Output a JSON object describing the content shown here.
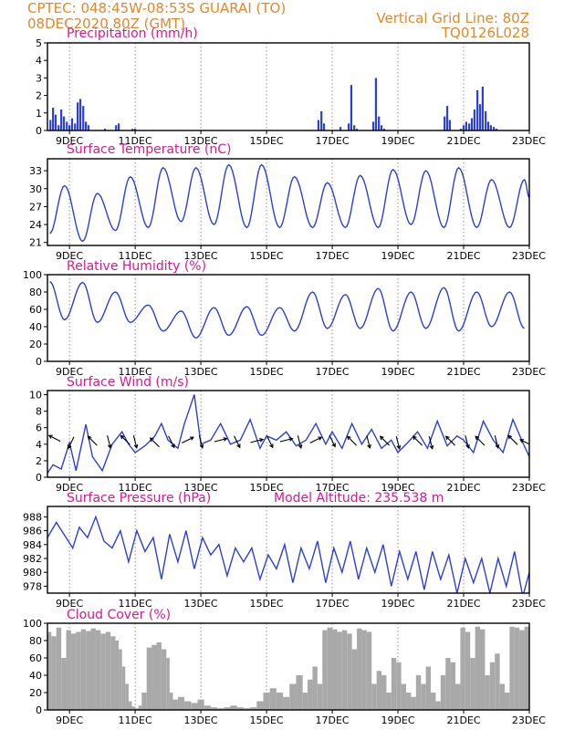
{
  "header": {
    "left_line1": "CPTEC:   048:45W-08:53S   GUARAI (TO)",
    "left_line2": "08DEC2020 80Z (GMT)",
    "right_line1": "Vertical Grid Line: 80Z",
    "right_line2": "TQ0126L028"
  },
  "colors": {
    "series": "#2b3fe0",
    "title": "#e0168a",
    "header": "#e8862a",
    "cloud": "#a9a9a9"
  },
  "chart_data": [
    {
      "type": "bar",
      "title": "Precipitation (mm/h)",
      "xlim": [
        8.33,
        23.0
      ],
      "ylim": [
        0,
        5
      ],
      "yticks": [
        0,
        1,
        2,
        3,
        4,
        5
      ],
      "xticks": [
        {
          "day": 9,
          "label": "9DEC"
        },
        {
          "day": 11,
          "label": "11DEC"
        },
        {
          "day": 13,
          "label": "13DEC"
        },
        {
          "day": 15,
          "label": "15DEC"
        },
        {
          "day": 17,
          "label": "17DEC"
        },
        {
          "day": 19,
          "label": "19DEC"
        },
        {
          "day": 21,
          "label": "21DEC"
        },
        {
          "day": 23,
          "label": "23DEC"
        }
      ],
      "x": [
        8.42,
        8.5,
        8.58,
        8.67,
        8.75,
        8.83,
        8.92,
        9.0,
        9.08,
        9.17,
        9.25,
        9.33,
        9.42,
        9.5,
        9.58,
        10.08,
        10.42,
        10.5,
        10.92,
        11.0,
        16.58,
        16.67,
        16.75,
        17.25,
        17.5,
        17.58,
        17.67,
        17.75,
        18.25,
        18.33,
        18.42,
        18.5,
        18.58,
        20.42,
        20.5,
        20.58,
        20.92,
        21.0,
        21.08,
        21.17,
        21.25,
        21.33,
        21.42,
        21.5,
        21.58,
        21.67,
        21.75,
        21.83,
        21.92,
        22.0
      ],
      "values": [
        0.6,
        1.3,
        0.9,
        0.3,
        1.2,
        0.8,
        0.5,
        0.3,
        0.7,
        0.4,
        1.6,
        1.8,
        1.4,
        0.5,
        0.3,
        0.1,
        0.3,
        0.4,
        0.1,
        0.1,
        0.6,
        1.1,
        0.4,
        0.2,
        0.4,
        2.6,
        0.3,
        0.1,
        0.5,
        3.0,
        0.8,
        0.3,
        0.1,
        0.8,
        1.4,
        0.6,
        0.1,
        0.3,
        0.5,
        0.4,
        0.7,
        1.2,
        2.3,
        1.5,
        2.5,
        1.1,
        0.5,
        0.3,
        0.2,
        0.1
      ]
    },
    {
      "type": "line",
      "title": "Surface Temperature (nC)",
      "xlim": [
        8.33,
        23.0
      ],
      "ylim": [
        20.5,
        35
      ],
      "yticks": [
        21,
        24,
        27,
        30,
        33
      ],
      "xticks": [
        {
          "day": 9,
          "label": "9DEC"
        },
        {
          "day": 11,
          "label": "11DEC"
        },
        {
          "day": 13,
          "label": "13DEC"
        },
        {
          "day": 15,
          "label": "15DEC"
        },
        {
          "day": 17,
          "label": "17DEC"
        },
        {
          "day": 19,
          "label": "19DEC"
        },
        {
          "day": 21,
          "label": "21DEC"
        },
        {
          "day": 23,
          "label": "23DEC"
        }
      ],
      "max_x": [
        8.85,
        9.85,
        10.85,
        11.85,
        12.85,
        13.85,
        14.85,
        15.85,
        16.85,
        17.85,
        18.85,
        19.85,
        20.85,
        21.85,
        22.85
      ],
      "max_y": [
        30.5,
        29.2,
        32.0,
        33.5,
        33.5,
        34.0,
        34.0,
        32.0,
        31.0,
        32.2,
        33.2,
        33.0,
        33.5,
        31.5,
        31.5
      ],
      "min_x": [
        8.4,
        9.4,
        10.4,
        11.4,
        12.4,
        13.4,
        14.4,
        15.4,
        16.4,
        17.4,
        18.4,
        19.4,
        20.4,
        21.4,
        22.4,
        23.0
      ],
      "min_y": [
        22.5,
        21.2,
        23.0,
        23.5,
        24.5,
        24.0,
        23.5,
        23.5,
        23.5,
        23.5,
        23.5,
        24.0,
        23.5,
        23.5,
        23.5,
        28.5
      ]
    },
    {
      "type": "line",
      "title": "Relative Humidity (%)",
      "xlim": [
        8.33,
        23.0
      ],
      "ylim": [
        0,
        100
      ],
      "yticks": [
        0,
        20,
        40,
        60,
        80,
        100
      ],
      "xticks": [
        {
          "day": 9,
          "label": "9DEC"
        },
        {
          "day": 11,
          "label": "11DEC"
        },
        {
          "day": 13,
          "label": "13DEC"
        },
        {
          "day": 15,
          "label": "15DEC"
        },
        {
          "day": 17,
          "label": "17DEC"
        },
        {
          "day": 19,
          "label": "19DEC"
        },
        {
          "day": 21,
          "label": "21DEC"
        },
        {
          "day": 23,
          "label": "23DEC"
        }
      ],
      "max_x": [
        8.4,
        9.4,
        10.4,
        11.4,
        12.4,
        13.4,
        14.4,
        15.4,
        16.4,
        17.4,
        18.4,
        19.4,
        20.4,
        21.4,
        22.4
      ],
      "max_y": [
        92,
        91,
        80,
        65,
        58,
        62,
        63,
        62,
        80,
        77,
        84,
        80,
        85,
        80,
        80
      ],
      "min_x": [
        8.85,
        9.85,
        10.85,
        11.85,
        12.85,
        13.85,
        14.85,
        15.85,
        16.85,
        17.85,
        18.85,
        19.85,
        20.85,
        21.85,
        22.85
      ],
      "min_y": [
        48,
        45,
        45,
        35,
        27,
        30,
        30,
        35,
        38,
        38,
        35,
        38,
        35,
        40,
        38
      ]
    },
    {
      "type": "line",
      "title": "Surface Wind (m/s)",
      "xlim": [
        8.33,
        23.0
      ],
      "ylim": [
        0,
        10.5
      ],
      "yticks": [
        0,
        2,
        4,
        6,
        8,
        10
      ],
      "xticks": [
        {
          "day": 9,
          "label": "9DEC"
        },
        {
          "day": 11,
          "label": "11DEC"
        },
        {
          "day": 13,
          "label": "13DEC"
        },
        {
          "day": 15,
          "label": "15DEC"
        },
        {
          "day": 17,
          "label": "17DEC"
        },
        {
          "day": 19,
          "label": "19DEC"
        },
        {
          "day": 21,
          "label": "21DEC"
        },
        {
          "day": 23,
          "label": "23DEC"
        }
      ],
      "x": [
        8.33,
        8.5,
        8.75,
        9.0,
        9.2,
        9.5,
        9.7,
        10.0,
        10.3,
        10.6,
        10.8,
        11.0,
        11.3,
        11.6,
        11.8,
        12.0,
        12.3,
        12.5,
        12.8,
        13.0,
        13.3,
        13.6,
        13.9,
        14.2,
        14.5,
        14.8,
        15.0,
        15.3,
        15.6,
        15.9,
        16.2,
        16.5,
        16.8,
        17.0,
        17.3,
        17.6,
        17.9,
        18.2,
        18.5,
        18.8,
        19.0,
        19.3,
        19.6,
        19.9,
        20.2,
        20.5,
        20.8,
        21.0,
        21.3,
        21.6,
        21.9,
        22.2,
        22.5,
        22.8,
        23.0
      ],
      "values": [
        0.5,
        1.5,
        1.0,
        4.2,
        0.8,
        6.4,
        2.5,
        0.8,
        4.0,
        5.5,
        4.0,
        3.0,
        3.8,
        5.0,
        6.5,
        4.5,
        3.5,
        6.5,
        10.0,
        4.0,
        4.5,
        6.5,
        4.0,
        4.5,
        7.0,
        3.5,
        5.0,
        4.5,
        5.5,
        3.8,
        4.5,
        6.5,
        4.0,
        5.5,
        3.5,
        6.5,
        4.0,
        5.8,
        3.5,
        4.5,
        3.0,
        4.2,
        5.5,
        3.5,
        6.8,
        3.8,
        5.0,
        4.5,
        3.0,
        6.8,
        4.5,
        3.0,
        7.0,
        4.2,
        2.5
      ],
      "vectors": [
        {
          "x": 8.55,
          "y": 4.7,
          "u": -2,
          "v": 1
        },
        {
          "x": 9.05,
          "y": 4.2,
          "u": -1,
          "v": -2
        },
        {
          "x": 9.7,
          "y": 4.4,
          "u": -1,
          "v": 1
        },
        {
          "x": 10.2,
          "y": 4.3,
          "u": 0.5,
          "v": -2
        },
        {
          "x": 10.7,
          "y": 4.5,
          "u": -1,
          "v": 1
        },
        {
          "x": 11.0,
          "y": 4.3,
          "u": 0.5,
          "v": -2
        },
        {
          "x": 11.6,
          "y": 4.2,
          "u": -1,
          "v": 1
        },
        {
          "x": 12.1,
          "y": 4.3,
          "u": 1,
          "v": -2
        },
        {
          "x": 12.6,
          "y": 4.5,
          "u": 2,
          "v": 1
        },
        {
          "x": 13.0,
          "y": 4.3,
          "u": 0.5,
          "v": -2
        },
        {
          "x": 13.6,
          "y": 4.5,
          "u": 2,
          "v": 0.5
        },
        {
          "x": 14.1,
          "y": 4.3,
          "u": 1,
          "v": -2
        },
        {
          "x": 14.7,
          "y": 4.4,
          "u": 2,
          "v": 0.5
        },
        {
          "x": 15.1,
          "y": 4.3,
          "u": 1,
          "v": -2
        },
        {
          "x": 15.6,
          "y": 4.5,
          "u": 2,
          "v": 0.5
        },
        {
          "x": 16.0,
          "y": 4.3,
          "u": 0.5,
          "v": -2
        },
        {
          "x": 16.5,
          "y": 4.5,
          "u": 2,
          "v": 1
        },
        {
          "x": 17.0,
          "y": 4.4,
          "u": 1,
          "v": -2
        },
        {
          "x": 17.6,
          "y": 4.4,
          "u": -1,
          "v": 1
        },
        {
          "x": 18.1,
          "y": 4.3,
          "u": 0.5,
          "v": -2
        },
        {
          "x": 18.6,
          "y": 4.4,
          "u": -1,
          "v": 1
        },
        {
          "x": 19.0,
          "y": 4.2,
          "u": 0.5,
          "v": -2
        },
        {
          "x": 19.6,
          "y": 4.4,
          "u": -1,
          "v": 1
        },
        {
          "x": 20.0,
          "y": 4.2,
          "u": 0.5,
          "v": -2
        },
        {
          "x": 20.6,
          "y": 4.4,
          "u": -1,
          "v": 1
        },
        {
          "x": 21.1,
          "y": 4.3,
          "u": 0.5,
          "v": -2
        },
        {
          "x": 21.5,
          "y": 4.4,
          "u": -1,
          "v": 1
        },
        {
          "x": 22.0,
          "y": 4.3,
          "u": 0.5,
          "v": -2
        },
        {
          "x": 22.5,
          "y": 4.5,
          "u": -1,
          "v": 1
        },
        {
          "x": 22.9,
          "y": 4.2,
          "u": -1,
          "v": 0.5
        }
      ]
    },
    {
      "type": "line",
      "title": "Surface Pressure (hPa)",
      "subtitle": "Model Altitude: 235.538 m",
      "xlim": [
        8.33,
        23.0
      ],
      "ylim": [
        977,
        989.5
      ],
      "yticks": [
        978,
        980,
        982,
        984,
        986,
        988
      ],
      "xticks": [
        {
          "day": 9,
          "label": "9DEC"
        },
        {
          "day": 11,
          "label": "11DEC"
        },
        {
          "day": 13,
          "label": "13DEC"
        },
        {
          "day": 15,
          "label": "15DEC"
        },
        {
          "day": 17,
          "label": "17DEC"
        },
        {
          "day": 19,
          "label": "19DEC"
        },
        {
          "day": 21,
          "label": "21DEC"
        },
        {
          "day": 23,
          "label": "23DEC"
        }
      ],
      "x": [
        8.33,
        8.6,
        8.9,
        9.1,
        9.3,
        9.55,
        9.8,
        10.05,
        10.3,
        10.55,
        10.8,
        11.05,
        11.3,
        11.55,
        11.8,
        12.05,
        12.3,
        12.55,
        12.8,
        13.05,
        13.3,
        13.55,
        13.8,
        14.05,
        14.3,
        14.55,
        14.8,
        15.05,
        15.3,
        15.55,
        15.8,
        16.05,
        16.3,
        16.55,
        16.8,
        17.05,
        17.3,
        17.55,
        17.8,
        18.05,
        18.3,
        18.55,
        18.8,
        19.05,
        19.3,
        19.55,
        19.8,
        20.05,
        20.3,
        20.55,
        20.8,
        21.05,
        21.3,
        21.55,
        21.8,
        22.05,
        22.3,
        22.55,
        22.8,
        23.0
      ],
      "values": [
        985.0,
        987.2,
        985.0,
        983.5,
        986.5,
        985.0,
        988.0,
        984.5,
        983.5,
        986.0,
        981.5,
        986.0,
        983.0,
        985.0,
        979.0,
        985.5,
        981.5,
        986.0,
        980.5,
        985.0,
        982.5,
        984.0,
        979.5,
        983.5,
        981.5,
        983.5,
        979.0,
        982.5,
        980.5,
        984.0,
        978.5,
        983.5,
        980.5,
        984.5,
        978.5,
        983.5,
        980.0,
        984.5,
        979.0,
        983.5,
        980.0,
        984.0,
        978.0,
        983.0,
        979.0,
        983.0,
        977.5,
        983.0,
        979.0,
        982.5,
        977.0,
        982.0,
        978.5,
        982.0,
        977.0,
        982.0,
        978.0,
        983.0,
        976.5,
        980.0
      ]
    },
    {
      "type": "area",
      "title": "Cloud Cover (%)",
      "xlim": [
        8.33,
        23.0
      ],
      "ylim": [
        0,
        100
      ],
      "yticks": [
        0,
        20,
        40,
        60,
        80,
        100
      ],
      "xticks": [
        {
          "day": 9,
          "label": "9DEC"
        },
        {
          "day": 11,
          "label": "11DEC"
        },
        {
          "day": 13,
          "label": "13DEC"
        },
        {
          "day": 15,
          "label": "15DEC"
        },
        {
          "day": 17,
          "label": "17DEC"
        },
        {
          "day": 19,
          "label": "19DEC"
        },
        {
          "day": 21,
          "label": "21DEC"
        },
        {
          "day": 23,
          "label": "23DEC"
        }
      ],
      "x": [
        8.33,
        8.45,
        8.6,
        8.75,
        8.9,
        9.05,
        9.2,
        9.35,
        9.5,
        9.65,
        9.8,
        9.95,
        10.1,
        10.25,
        10.4,
        10.5,
        10.6,
        10.7,
        10.8,
        10.9,
        11.0,
        11.1,
        11.2,
        11.35,
        11.5,
        11.65,
        11.8,
        11.95,
        12.05,
        12.15,
        12.3,
        12.5,
        12.7,
        12.9,
        13.1,
        13.3,
        13.5,
        13.7,
        13.9,
        14.1,
        14.3,
        14.5,
        14.7,
        14.9,
        15.1,
        15.3,
        15.5,
        15.7,
        15.9,
        16.1,
        16.25,
        16.4,
        16.55,
        16.7,
        16.85,
        17.0,
        17.15,
        17.3,
        17.45,
        17.6,
        17.75,
        17.9,
        18.05,
        18.2,
        18.35,
        18.5,
        18.65,
        18.8,
        18.95,
        19.1,
        19.25,
        19.4,
        19.55,
        19.7,
        19.85,
        20.0,
        20.15,
        20.3,
        20.45,
        20.6,
        20.75,
        20.9,
        21.05,
        21.2,
        21.35,
        21.5,
        21.65,
        21.8,
        21.95,
        22.1,
        22.25,
        22.4,
        22.55,
        22.7,
        22.85,
        23.0
      ],
      "values": [
        90,
        85,
        95,
        60,
        92,
        88,
        90,
        93,
        91,
        94,
        92,
        88,
        90,
        85,
        80,
        70,
        50,
        30,
        10,
        4,
        2,
        5,
        20,
        72,
        75,
        78,
        70,
        60,
        20,
        12,
        15,
        10,
        8,
        12,
        5,
        3,
        2,
        3,
        5,
        3,
        2,
        3,
        10,
        20,
        25,
        20,
        15,
        30,
        40,
        20,
        35,
        50,
        30,
        92,
        95,
        93,
        90,
        92,
        88,
        70,
        94,
        92,
        90,
        30,
        45,
        40,
        20,
        60,
        55,
        30,
        20,
        15,
        40,
        30,
        50,
        20,
        10,
        40,
        60,
        55,
        30,
        95,
        90,
        60,
        96,
        93,
        40,
        55,
        65,
        30,
        20,
        96,
        95,
        92,
        96,
        94
      ]
    }
  ]
}
